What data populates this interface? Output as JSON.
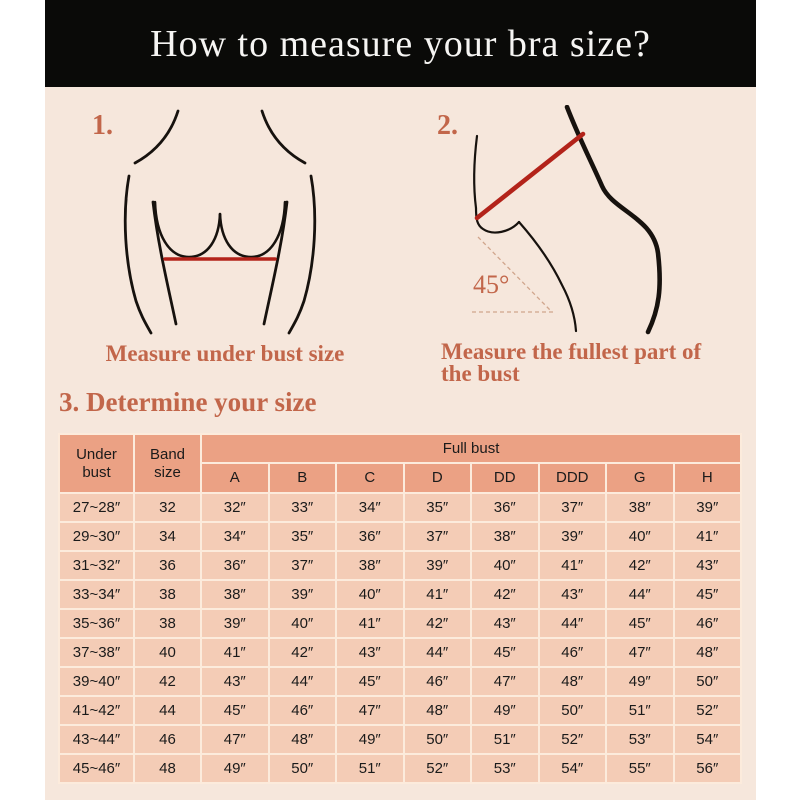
{
  "header": {
    "title": "How to measure your bra size?"
  },
  "colors": {
    "page_margin_bg": "#ffffff",
    "content_bg": "#f6e7dc",
    "header_bg": "#0a0a08",
    "title_text": "#f6f5f3",
    "accent_orange": "#c2664a",
    "measuring_line_red": "#b3231a",
    "line_art_ink": "#17120e",
    "table_header_bg": "#eba184",
    "table_row_bg": "#f4ccb6",
    "table_border": "#fcebdc",
    "table_text": "#1b1b1b",
    "dashed_angle_line": "#d0a58c"
  },
  "steps": {
    "one": {
      "number": "1.",
      "caption": "Measure under bust size"
    },
    "two": {
      "number": "2.",
      "caption_line1": "Measure the fullest part of",
      "caption_line2": "the bust",
      "angle_label": "45°"
    },
    "three": {
      "heading": "3. Determine your size"
    }
  },
  "size_table": {
    "col_under_bust": "Under bust",
    "col_band_size": "Band size",
    "col_full_bust": "Full bust",
    "cups": [
      "A",
      "B",
      "C",
      "D",
      "DD",
      "DDD",
      "G",
      "H"
    ],
    "rows": [
      [
        "27~28″",
        "32",
        "32″",
        "33″",
        "34″",
        "35″",
        "36″",
        "37″",
        "38″",
        "39″"
      ],
      [
        "29~30″",
        "34",
        "34″",
        "35″",
        "36″",
        "37″",
        "38″",
        "39″",
        "40″",
        "41″"
      ],
      [
        "31~32″",
        "36",
        "36″",
        "37″",
        "38″",
        "39″",
        "40″",
        "41″",
        "42″",
        "43″"
      ],
      [
        "33~34″",
        "38",
        "38″",
        "39″",
        "40″",
        "41″",
        "42″",
        "43″",
        "44″",
        "45″"
      ],
      [
        "35~36″",
        "38",
        "39″",
        "40″",
        "41″",
        "42″",
        "43″",
        "44″",
        "45″",
        "46″"
      ],
      [
        "37~38″",
        "40",
        "41″",
        "42″",
        "43″",
        "44″",
        "45″",
        "46″",
        "47″",
        "48″"
      ],
      [
        "39~40″",
        "42",
        "43″",
        "44″",
        "45″",
        "46″",
        "47″",
        "48″",
        "49″",
        "50″"
      ],
      [
        "41~42″",
        "44",
        "45″",
        "46″",
        "47″",
        "48″",
        "49″",
        "50″",
        "51″",
        "52″"
      ],
      [
        "43~44″",
        "46",
        "47″",
        "48″",
        "49″",
        "50″",
        "51″",
        "52″",
        "53″",
        "54″"
      ],
      [
        "45~46″",
        "48",
        "49″",
        "50″",
        "51″",
        "52″",
        "53″",
        "54″",
        "55″",
        "56″"
      ]
    ]
  }
}
